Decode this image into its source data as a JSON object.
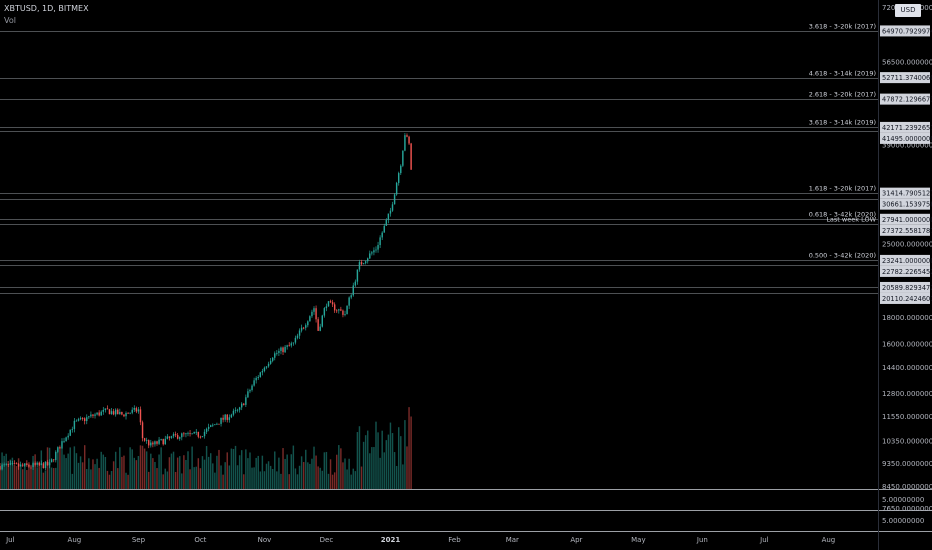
{
  "header": {
    "symbol": "XBTUSD, 1D, BITMEX",
    "pane": "Vol",
    "currency": "USD"
  },
  "colors": {
    "background": "#000000",
    "up": "#26a69a",
    "down": "#ef5350",
    "grid_line": "#9aa0a6",
    "axis_text": "#b2b5be",
    "label_bg": "#d1d4dc",
    "label_text": "#131722"
  },
  "chart_data": {
    "type": "candlestick",
    "price_axis": {
      "scale": "log",
      "range": [
        7200,
        72000
      ],
      "ticks": [
        72000,
        56500,
        39000,
        25000,
        18000,
        16000,
        14400,
        12800,
        11550,
        10350,
        9350,
        8450,
        7650
      ],
      "tick_labels": [
        "72000.00000000",
        "56500.00000000",
        "39000.00000000",
        "25000.00000000",
        "18000.00000000",
        "16000.00000000",
        "14400.00000000",
        "12800.00000000",
        "11550.00000000",
        "10350.00000000",
        "9350.00000000",
        "8450.00000000",
        "7650.00000000"
      ]
    },
    "volume_axis": {
      "tick_labels": [
        "5.00000000",
        "5.00000000"
      ]
    },
    "x_axis": {
      "range": [
        "2020-06-26",
        "2021-08-25"
      ],
      "labels": [
        {
          "date": "2020-07-01",
          "text": "Jul"
        },
        {
          "date": "2020-08-01",
          "text": "Aug"
        },
        {
          "date": "2020-09-01",
          "text": "Sep"
        },
        {
          "date": "2020-10-01",
          "text": "Oct"
        },
        {
          "date": "2020-11-01",
          "text": "Nov"
        },
        {
          "date": "2020-12-01",
          "text": "Dec"
        },
        {
          "date": "2021-01-01",
          "text": "2021",
          "bold": true
        },
        {
          "date": "2021-02-01",
          "text": "Feb"
        },
        {
          "date": "2021-03-01",
          "text": "Mar"
        },
        {
          "date": "2021-04-01",
          "text": "Apr"
        },
        {
          "date": "2021-05-01",
          "text": "May"
        },
        {
          "date": "2021-06-01",
          "text": "Jun"
        },
        {
          "date": "2021-07-01",
          "text": "Jul"
        },
        {
          "date": "2021-08-01",
          "text": "Aug"
        }
      ]
    },
    "price_keypoints": [
      [
        "2020-06-26",
        9250
      ],
      [
        "2020-07-10",
        9250
      ],
      [
        "2020-07-20",
        9300
      ],
      [
        "2020-07-26",
        10300
      ],
      [
        "2020-08-01",
        11200
      ],
      [
        "2020-08-10",
        11600
      ],
      [
        "2020-08-17",
        11850
      ],
      [
        "2020-08-24",
        11650
      ],
      [
        "2020-09-01",
        11900
      ],
      [
        "2020-09-03",
        10500
      ],
      [
        "2020-09-07",
        10150
      ],
      [
        "2020-09-20",
        10600
      ],
      [
        "2020-10-01",
        10650
      ],
      [
        "2020-10-10",
        11300
      ],
      [
        "2020-10-20",
        11900
      ],
      [
        "2020-10-27",
        13500
      ],
      [
        "2020-11-05",
        15200
      ],
      [
        "2020-11-15",
        16000
      ],
      [
        "2020-11-25",
        18800
      ],
      [
        "2020-11-27",
        17000
      ],
      [
        "2020-12-01",
        19200
      ],
      [
        "2020-12-10",
        18300
      ],
      [
        "2020-12-17",
        22800
      ],
      [
        "2020-12-25",
        24500
      ],
      [
        "2021-01-01",
        29000
      ],
      [
        "2021-01-06",
        36000
      ],
      [
        "2021-01-08",
        41000
      ],
      [
        "2021-01-10",
        39000
      ],
      [
        "2021-01-11",
        35000
      ]
    ],
    "levels": [
      {
        "price": 64970.79299741,
        "value_label": "64970.79299741",
        "text": "3.618 - 3-20k (2017)"
      },
      {
        "price": 52711.37400603,
        "value_label": "52711.37400603",
        "text": "4.618 - 3-14k (2019)"
      },
      {
        "price": 47872.12966733,
        "value_label": "47872.12966733",
        "text": "2.618 - 3-20k (2017)"
      },
      {
        "price": 42171.23926577,
        "value_label": "42171.23926577",
        "text": "3.618 - 3-14k (2019)"
      },
      {
        "price": 41495.0,
        "value_label": "41495.00000000",
        "text": ""
      },
      {
        "price": 31414.7905127,
        "value_label": "31414.79051270",
        "text": "1.618 - 3-20k (2017)"
      },
      {
        "price": 30661.15397587,
        "value_label": "30661.15397587",
        "text": ""
      },
      {
        "price": 27941.0,
        "value_label": "27941.00000000",
        "text": "0.618 - 3-42k (2020)"
      },
      {
        "price": 27372.55817875,
        "value_label": "27372.55817875",
        "text": "Last week LOW"
      },
      {
        "price": 23241.0,
        "value_label": "23241.00000000",
        "text": "0.500 - 3-42k (2020)"
      },
      {
        "price": 22782.22654528,
        "value_label": "22782.22654528",
        "text": ""
      },
      {
        "price": 20589.8293472,
        "value_label": "20589.82934720",
        "text": ""
      },
      {
        "price": 20110.24246012,
        "value_label": "20110.24246012",
        "text": ""
      }
    ]
  }
}
